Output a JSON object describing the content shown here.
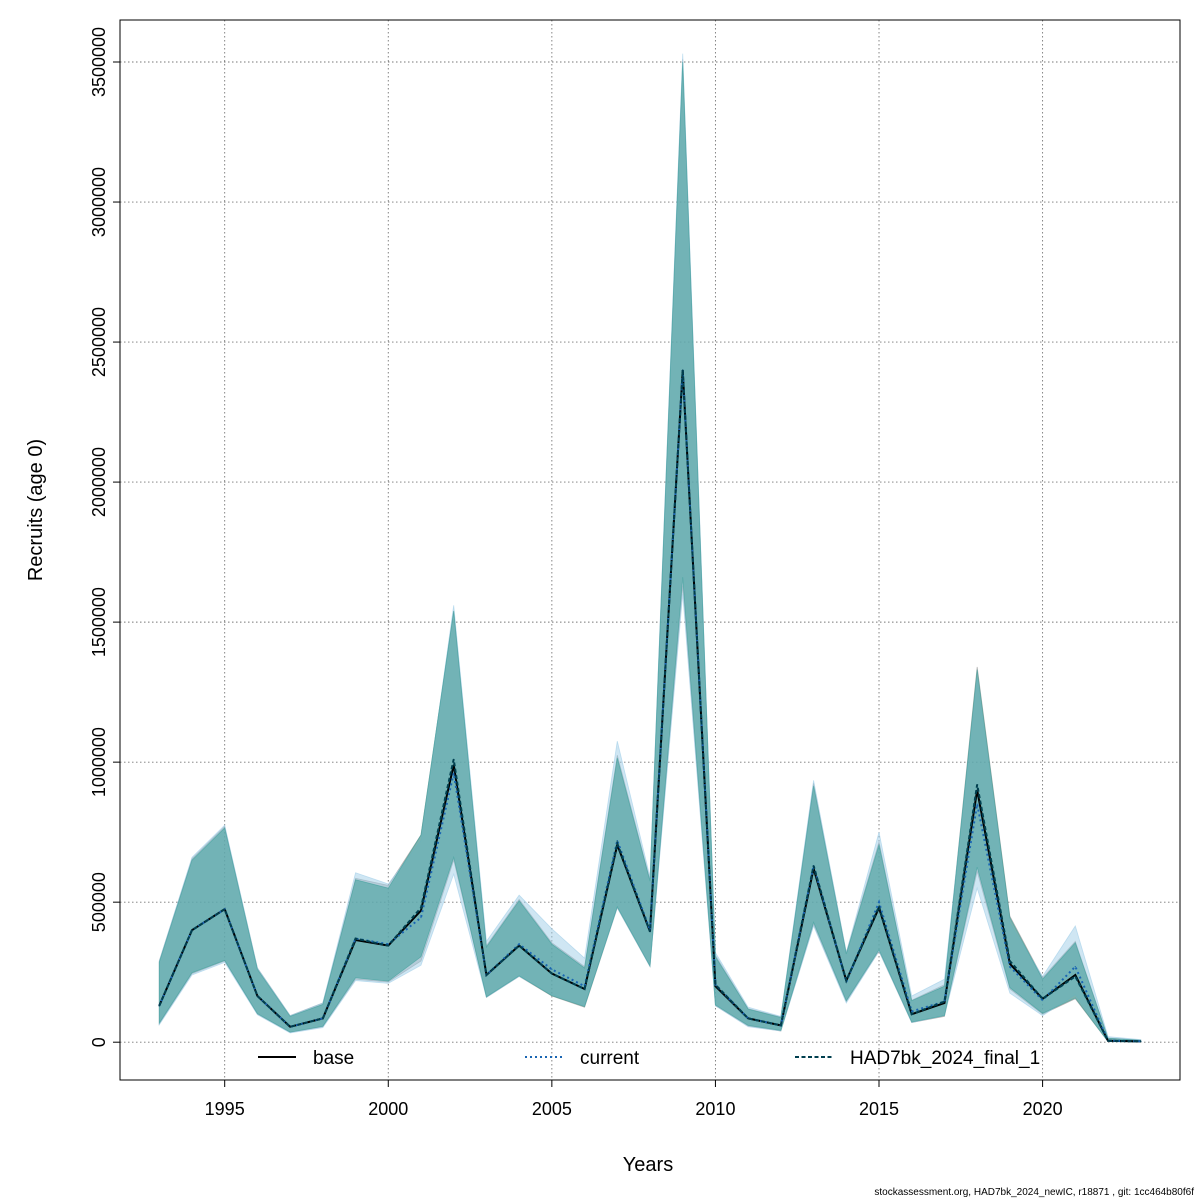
{
  "footer": {
    "text": "stockassessment.org, HAD7bk_2024_newIC, r18871 , git: 1cc464b80f6f"
  },
  "chart_data": {
    "type": "line",
    "title": "",
    "xlabel": "Years",
    "ylabel": "Recruits (age 0)",
    "xlim": [
      1991.8,
      2024.2
    ],
    "ylim": [
      -135000,
      3650000
    ],
    "x_ticks": [
      1995,
      2000,
      2005,
      2010,
      2015,
      2020
    ],
    "y_ticks": [
      0,
      500000,
      1000000,
      1500000,
      2000000,
      2500000,
      3000000,
      3500000
    ],
    "grid": true,
    "legend_position": "bottom",
    "x": [
      1993,
      1994,
      1995,
      1996,
      1997,
      1998,
      1999,
      2000,
      2001,
      2002,
      2003,
      2004,
      2005,
      2006,
      2007,
      2008,
      2009,
      2010,
      2011,
      2012,
      2013,
      2014,
      2015,
      2016,
      2017,
      2018,
      2019,
      2020,
      2021,
      2022,
      2023
    ],
    "series": [
      {
        "name": "base",
        "color": "#000000",
        "dash": "solid",
        "values": [
          130000,
          400000,
          475000,
          165000,
          55000,
          85000,
          365000,
          345000,
          470000,
          990000,
          240000,
          345000,
          245000,
          190000,
          705000,
          395000,
          2400000,
          200000,
          85000,
          60000,
          620000,
          220000,
          480000,
          100000,
          140000,
          900000,
          280000,
          155000,
          240000,
          5000,
          3000
        ],
        "upper": [
          290000,
          655000,
          770000,
          265000,
          95000,
          140000,
          585000,
          560000,
          740000,
          1540000,
          345000,
          510000,
          355000,
          270000,
          1025000,
          580000,
          3510000,
          310000,
          120000,
          90000,
          925000,
          320000,
          715000,
          150000,
          205000,
          1340000,
          450000,
          230000,
          360000,
          15000,
          8000
        ],
        "lower": [
          65000,
          245000,
          290000,
          100000,
          35000,
          55000,
          225000,
          215000,
          290000,
          650000,
          160000,
          235000,
          165000,
          125000,
          480000,
          270000,
          1630000,
          130000,
          58000,
          40000,
          420000,
          145000,
          325000,
          70000,
          92000,
          610000,
          190000,
          100000,
          155000,
          2000,
          1000
        ],
        "band_color": "#8c8c8c"
      },
      {
        "name": "current",
        "color": "#1a66b3",
        "dash": "dotted",
        "values": [
          130000,
          400000,
          475000,
          165000,
          55000,
          85000,
          370000,
          350000,
          445000,
          960000,
          240000,
          350000,
          260000,
          200000,
          720000,
          400000,
          2400000,
          205000,
          85000,
          60000,
          630000,
          215000,
          500000,
          110000,
          145000,
          850000,
          270000,
          150000,
          270000,
          6000,
          3000
        ],
        "upper": [
          290000,
          660000,
          775000,
          265000,
          95000,
          140000,
          605000,
          565000,
          720000,
          1560000,
          360000,
          525000,
          405000,
          300000,
          1075000,
          590000,
          3530000,
          320000,
          125000,
          92000,
          935000,
          320000,
          750000,
          165000,
          225000,
          1300000,
          425000,
          235000,
          415000,
          20000,
          9000
        ],
        "lower": [
          62000,
          240000,
          285000,
          98000,
          33000,
          52000,
          220000,
          210000,
          275000,
          600000,
          160000,
          235000,
          170000,
          130000,
          480000,
          270000,
          1600000,
          130000,
          55000,
          40000,
          415000,
          140000,
          325000,
          70000,
          95000,
          550000,
          175000,
          95000,
          170000,
          2000,
          1000
        ],
        "band_color": "#9fcde8"
      },
      {
        "name": "HAD7bk_2024_final_1",
        "color": "#003f4f",
        "dash": "dashed",
        "values": [
          130000,
          400000,
          475000,
          165000,
          55000,
          85000,
          370000,
          345000,
          480000,
          1010000,
          240000,
          345000,
          245000,
          190000,
          710000,
          395000,
          2400000,
          205000,
          85000,
          60000,
          630000,
          220000,
          485000,
          100000,
          145000,
          920000,
          290000,
          155000,
          235000,
          5000,
          3000
        ],
        "upper": [
          285000,
          650000,
          765000,
          260000,
          92000,
          135000,
          580000,
          550000,
          740000,
          1540000,
          340000,
          505000,
          350000,
          265000,
          1015000,
          575000,
          3500000,
          305000,
          118000,
          88000,
          915000,
          315000,
          705000,
          148000,
          200000,
          1330000,
          445000,
          225000,
          355000,
          14000,
          7000
        ],
        "lower": [
          68000,
          248000,
          292000,
          102000,
          36000,
          57000,
          230000,
          218000,
          305000,
          660000,
          162000,
          237000,
          166000,
          127000,
          483000,
          272000,
          1660000,
          133000,
          60000,
          42000,
          428000,
          148000,
          330000,
          72000,
          95000,
          625000,
          195000,
          103000,
          158000,
          2000,
          1000
        ],
        "band_color": "#3b9f99"
      }
    ]
  }
}
